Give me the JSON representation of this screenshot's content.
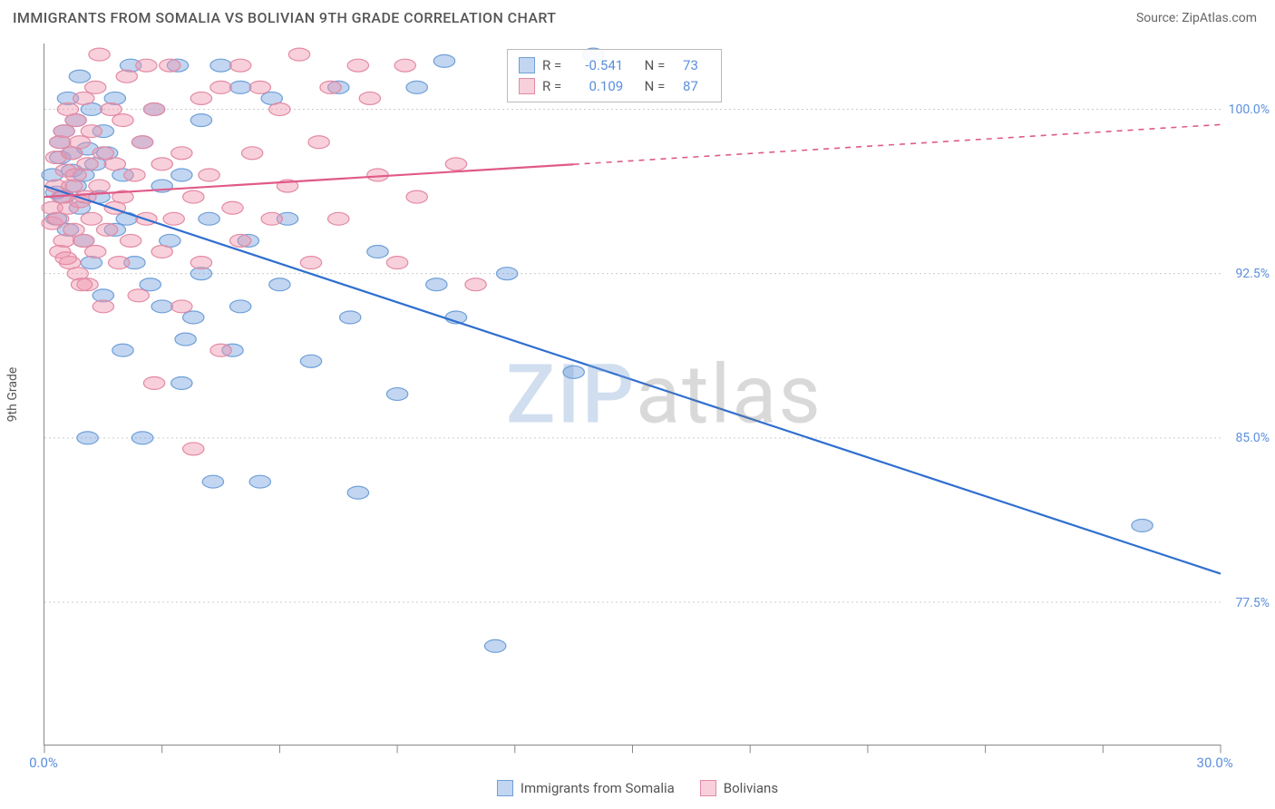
{
  "header": {
    "title": "IMMIGRANTS FROM SOMALIA VS BOLIVIAN 9TH GRADE CORRELATION CHART",
    "source_prefix": "Source: ",
    "source_name": "ZipAtlas.com"
  },
  "chart": {
    "type": "scatter",
    "ylabel": "9th Grade",
    "xlim": [
      0,
      30
    ],
    "ylim": [
      71,
      103
    ],
    "x_tick_positions": [
      0,
      3,
      6,
      9,
      12,
      15,
      18,
      21,
      24,
      27,
      30
    ],
    "x_tick_labels_shown": {
      "0": "0.0%",
      "30": "30.0%"
    },
    "y_ticks": [
      77.5,
      85.0,
      92.5,
      100.0
    ],
    "y_tick_labels": [
      "77.5%",
      "85.0%",
      "92.5%",
      "100.0%"
    ],
    "background_color": "#ffffff",
    "grid_color": "#cccccc",
    "axis_color": "#888888",
    "tick_label_color": "#5b8fdc",
    "series": [
      {
        "key": "somalia",
        "label": "Immigrants from Somalia",
        "color_fill": "rgba(120,165,225,0.45)",
        "color_stroke": "#6f9fd8",
        "line_color": "#2f6fd0",
        "marker_radius": 9,
        "r": "-0.541",
        "n": "73",
        "trend": {
          "x1": 0,
          "y1": 96.5,
          "x2": 30,
          "y2": 78.8,
          "dash_after_x": null
        },
        "points": [
          [
            0.2,
            97.0
          ],
          [
            0.3,
            96.2
          ],
          [
            0.3,
            95.0
          ],
          [
            0.4,
            98.5
          ],
          [
            0.4,
            97.8
          ],
          [
            0.5,
            99.0
          ],
          [
            0.5,
            96.0
          ],
          [
            0.6,
            100.5
          ],
          [
            0.6,
            94.5
          ],
          [
            0.7,
            98.0
          ],
          [
            0.7,
            97.2
          ],
          [
            0.8,
            96.5
          ],
          [
            0.8,
            99.5
          ],
          [
            0.9,
            95.5
          ],
          [
            0.9,
            101.5
          ],
          [
            1.0,
            97.0
          ],
          [
            1.0,
            94.0
          ],
          [
            1.1,
            98.2
          ],
          [
            1.2,
            100.0
          ],
          [
            1.2,
            93.0
          ],
          [
            1.3,
            97.5
          ],
          [
            1.4,
            96.0
          ],
          [
            1.5,
            99.0
          ],
          [
            1.5,
            91.5
          ],
          [
            1.6,
            98.0
          ],
          [
            1.8,
            94.5
          ],
          [
            1.8,
            100.5
          ],
          [
            2.0,
            97.0
          ],
          [
            2.0,
            89.0
          ],
          [
            2.1,
            95.0
          ],
          [
            2.2,
            102.0
          ],
          [
            2.3,
            93.0
          ],
          [
            2.5,
            98.5
          ],
          [
            2.5,
            85.0
          ],
          [
            2.7,
            92.0
          ],
          [
            2.8,
            100.0
          ],
          [
            3.0,
            96.5
          ],
          [
            3.0,
            91.0
          ],
          [
            3.2,
            94.0
          ],
          [
            3.4,
            102.0
          ],
          [
            3.5,
            87.5
          ],
          [
            3.5,
            97.0
          ],
          [
            3.8,
            90.5
          ],
          [
            4.0,
            92.5
          ],
          [
            4.0,
            99.5
          ],
          [
            4.2,
            95.0
          ],
          [
            4.5,
            102.0
          ],
          [
            4.8,
            89.0
          ],
          [
            5.0,
            91.0
          ],
          [
            5.0,
            101.0
          ],
          [
            5.2,
            94.0
          ],
          [
            5.5,
            83.0
          ],
          [
            5.8,
            100.5
          ],
          [
            6.0,
            92.0
          ],
          [
            6.2,
            95.0
          ],
          [
            6.8,
            88.5
          ],
          [
            7.5,
            101.0
          ],
          [
            7.8,
            90.5
          ],
          [
            8.0,
            82.5
          ],
          [
            8.5,
            93.5
          ],
          [
            9.0,
            87.0
          ],
          [
            9.5,
            101.0
          ],
          [
            10.0,
            92.0
          ],
          [
            10.2,
            102.2
          ],
          [
            10.5,
            90.5
          ],
          [
            11.5,
            75.5
          ],
          [
            11.8,
            92.5
          ],
          [
            13.5,
            88.0
          ],
          [
            14.0,
            102.5
          ],
          [
            28.0,
            81.0
          ],
          [
            3.6,
            89.5
          ],
          [
            4.3,
            83.0
          ],
          [
            1.1,
            85.0
          ]
        ]
      },
      {
        "key": "bolivian",
        "label": "Bolivians",
        "color_fill": "rgba(240,150,175,0.45)",
        "color_stroke": "#e38aa3",
        "line_color": "#e05a88",
        "marker_radius": 9,
        "r": "0.109",
        "n": "87",
        "trend": {
          "x1": 0,
          "y1": 96.0,
          "x2": 30,
          "y2": 99.3,
          "dash_after_x": 13.5
        },
        "points": [
          [
            0.2,
            95.5
          ],
          [
            0.2,
            94.8
          ],
          [
            0.3,
            96.5
          ],
          [
            0.3,
            97.8
          ],
          [
            0.35,
            95.0
          ],
          [
            0.4,
            98.5
          ],
          [
            0.4,
            93.5
          ],
          [
            0.45,
            96.0
          ],
          [
            0.5,
            99.0
          ],
          [
            0.5,
            94.0
          ],
          [
            0.55,
            97.2
          ],
          [
            0.6,
            95.5
          ],
          [
            0.6,
            100.0
          ],
          [
            0.65,
            93.0
          ],
          [
            0.7,
            96.5
          ],
          [
            0.7,
            98.0
          ],
          [
            0.75,
            94.5
          ],
          [
            0.8,
            97.0
          ],
          [
            0.8,
            99.5
          ],
          [
            0.85,
            92.5
          ],
          [
            0.9,
            95.8
          ],
          [
            0.9,
            98.5
          ],
          [
            1.0,
            100.5
          ],
          [
            1.0,
            94.0
          ],
          [
            1.05,
            96.0
          ],
          [
            1.1,
            97.5
          ],
          [
            1.1,
            92.0
          ],
          [
            1.2,
            99.0
          ],
          [
            1.2,
            95.0
          ],
          [
            1.3,
            101.0
          ],
          [
            1.3,
            93.5
          ],
          [
            1.4,
            96.5
          ],
          [
            1.5,
            98.0
          ],
          [
            1.5,
            91.0
          ],
          [
            1.6,
            94.5
          ],
          [
            1.7,
            100.0
          ],
          [
            1.8,
            95.5
          ],
          [
            1.8,
            97.5
          ],
          [
            1.9,
            93.0
          ],
          [
            2.0,
            99.5
          ],
          [
            2.0,
            96.0
          ],
          [
            2.1,
            101.5
          ],
          [
            2.2,
            94.0
          ],
          [
            2.3,
            97.0
          ],
          [
            2.4,
            91.5
          ],
          [
            2.5,
            98.5
          ],
          [
            2.6,
            95.0
          ],
          [
            2.8,
            100.0
          ],
          [
            2.8,
            87.5
          ],
          [
            3.0,
            93.5
          ],
          [
            3.0,
            97.5
          ],
          [
            3.2,
            102.0
          ],
          [
            3.3,
            95.0
          ],
          [
            3.5,
            98.0
          ],
          [
            3.5,
            91.0
          ],
          [
            3.8,
            96.0
          ],
          [
            4.0,
            100.5
          ],
          [
            4.0,
            93.0
          ],
          [
            4.2,
            97.0
          ],
          [
            4.5,
            101.0
          ],
          [
            4.5,
            89.0
          ],
          [
            4.8,
            95.5
          ],
          [
            5.0,
            102.0
          ],
          [
            5.0,
            94.0
          ],
          [
            5.3,
            98.0
          ],
          [
            5.5,
            101.0
          ],
          [
            5.8,
            95.0
          ],
          [
            6.0,
            100.0
          ],
          [
            6.2,
            96.5
          ],
          [
            6.5,
            102.5
          ],
          [
            6.8,
            93.0
          ],
          [
            7.0,
            98.5
          ],
          [
            7.3,
            101.0
          ],
          [
            7.5,
            95.0
          ],
          [
            8.0,
            102.0
          ],
          [
            8.3,
            100.5
          ],
          [
            8.5,
            97.0
          ],
          [
            9.0,
            93.0
          ],
          [
            9.2,
            102.0
          ],
          [
            9.5,
            96.0
          ],
          [
            10.5,
            97.5
          ],
          [
            11.0,
            92.0
          ],
          [
            1.4,
            102.5
          ],
          [
            2.6,
            102.0
          ],
          [
            3.8,
            84.5
          ],
          [
            0.95,
            92.0
          ],
          [
            0.55,
            93.2
          ]
        ]
      }
    ],
    "stats_legend": {
      "r_label": "R =",
      "n_label": "N ="
    },
    "bottom_legend": true,
    "watermark": {
      "z": "ZIP",
      "rest": "atlas"
    }
  }
}
